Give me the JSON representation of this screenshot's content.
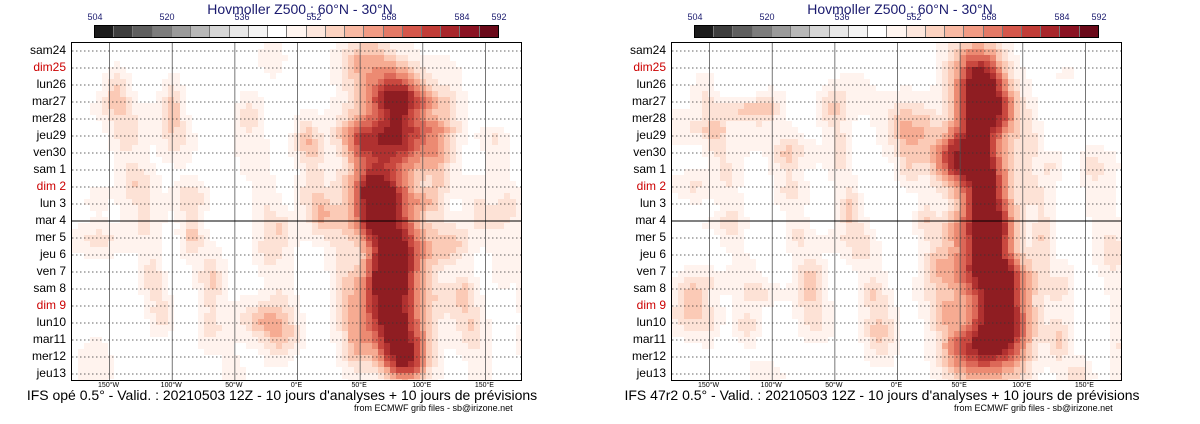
{
  "colors": {
    "colorbar": [
      "#1c1c1c",
      "#3d3d3d",
      "#5e5e5e",
      "#7c7c7c",
      "#9a9a9a",
      "#b8b8b8",
      "#d6d6d6",
      "#e8e8e8",
      "#f4f4f4",
      "#ffffff",
      "#fff5f0",
      "#fde7dd",
      "#fcd3c1",
      "#f9b9a3",
      "#f29b84",
      "#e47966",
      "#d5574b",
      "#c13c37",
      "#a8262b",
      "#8a1222",
      "#6b0a1a"
    ],
    "red_day": "#cc0000"
  },
  "chart_data": [
    {
      "type": "heatmap",
      "title": "Hovmoller Z500 ; 60°N - 30°N",
      "colorbar_ticks": [
        "504",
        "520",
        "536",
        "552",
        "568",
        "584",
        "592"
      ],
      "y_ticks": [
        {
          "label": "sam24",
          "red": false
        },
        {
          "label": "dim25",
          "red": true
        },
        {
          "label": "lun26",
          "red": false
        },
        {
          "label": "mar27",
          "red": false
        },
        {
          "label": "mer28",
          "red": false
        },
        {
          "label": "jeu29",
          "red": false
        },
        {
          "label": "ven30",
          "red": false
        },
        {
          "label": "sam 1",
          "red": false
        },
        {
          "label": "dim 2",
          "red": true
        },
        {
          "label": "lun 3",
          "red": false
        },
        {
          "label": "mar 4",
          "red": false
        },
        {
          "label": "mer 5",
          "red": false
        },
        {
          "label": "jeu 6",
          "red": false
        },
        {
          "label": "ven 7",
          "red": false
        },
        {
          "label": "sam 8",
          "red": false
        },
        {
          "label": "dim 9",
          "red": true
        },
        {
          "label": "lun10",
          "red": false
        },
        {
          "label": "mar11",
          "red": false
        },
        {
          "label": "mer12",
          "red": false
        },
        {
          "label": "jeu13",
          "red": false
        }
      ],
      "x_ticks": [
        "150°W",
        "100°W",
        "50°W",
        "0°E",
        "50°E",
        "100°E",
        "150°E"
      ],
      "x_values": [
        -150,
        -100,
        -50,
        0,
        50,
        100,
        150
      ],
      "xlim": [
        -180,
        180
      ],
      "caption": "IFS opé 0.5° - Valid. : 20210503 12Z - 10 jours d'analyses + 10 jours de prévisions",
      "credit": "from ECMWF grib files - sb@irizone.net"
    },
    {
      "type": "heatmap",
      "title": "Hovmoller Z500 ; 60°N - 30°N",
      "colorbar_ticks": [
        "504",
        "520",
        "536",
        "552",
        "568",
        "584",
        "592"
      ],
      "y_ticks": [
        {
          "label": "sam24",
          "red": false
        },
        {
          "label": "dim25",
          "red": true
        },
        {
          "label": "lun26",
          "red": false
        },
        {
          "label": "mar27",
          "red": false
        },
        {
          "label": "mer28",
          "red": false
        },
        {
          "label": "jeu29",
          "red": false
        },
        {
          "label": "ven30",
          "red": false
        },
        {
          "label": "sam 1",
          "red": false
        },
        {
          "label": "dim 2",
          "red": true
        },
        {
          "label": "lun 3",
          "red": false
        },
        {
          "label": "mar 4",
          "red": false
        },
        {
          "label": "mer 5",
          "red": false
        },
        {
          "label": "jeu 6",
          "red": false
        },
        {
          "label": "ven 7",
          "red": false
        },
        {
          "label": "sam 8",
          "red": false
        },
        {
          "label": "dim 9",
          "red": true
        },
        {
          "label": "lun10",
          "red": false
        },
        {
          "label": "mar11",
          "red": false
        },
        {
          "label": "mer12",
          "red": false
        },
        {
          "label": "jeu13",
          "red": false
        }
      ],
      "x_ticks": [
        "150°W",
        "100°W",
        "50°W",
        "0°E",
        "50°E",
        "100°E",
        "150°E"
      ],
      "x_values": [
        -150,
        -100,
        -50,
        0,
        50,
        100,
        150
      ],
      "xlim": [
        -180,
        180
      ],
      "caption": "IFS 47r2 0.5° - Valid. : 20210503 12Z - 10 jours d'analyses + 10 jours de prévisions",
      "credit": "from ECMWF grib files - sb@irizone.net"
    }
  ]
}
